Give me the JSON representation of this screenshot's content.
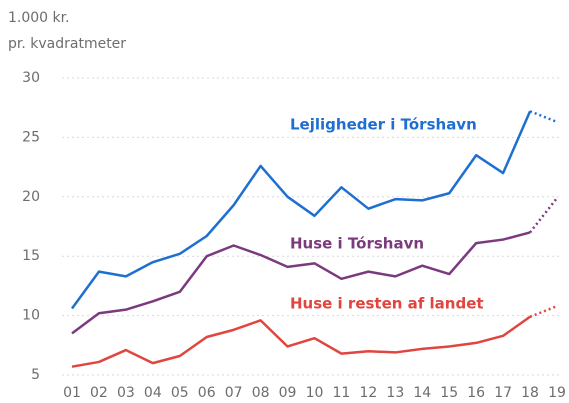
{
  "chart_data": {
    "type": "line",
    "ylabel": [
      "1.000 kr.",
      "pr. kvadratmeter"
    ],
    "categories": [
      "01",
      "02",
      "03",
      "04",
      "05",
      "06",
      "07",
      "08",
      "09",
      "10",
      "11",
      "12",
      "13",
      "14",
      "15",
      "16",
      "17",
      "18",
      "19"
    ],
    "series": [
      {
        "name": "Lejligheder i Tórshavn",
        "color": "#1f6fd1",
        "values": [
          10.6,
          13.7,
          13.3,
          14.5,
          15.2,
          16.7,
          19.3,
          22.6,
          20.0,
          18.4,
          20.8,
          19.0,
          19.8,
          19.7,
          20.3,
          23.5,
          22.0,
          27.2,
          26.3
        ]
      },
      {
        "name": "Huse i Tórshavn",
        "color": "#7b3a7e",
        "values": [
          8.5,
          10.2,
          10.5,
          11.2,
          12.0,
          15.0,
          15.9,
          15.1,
          14.1,
          14.4,
          13.1,
          13.7,
          13.3,
          14.2,
          13.5,
          16.1,
          16.4,
          17.0,
          19.9
        ]
      },
      {
        "name": "Huse i resten af landet",
        "color": "#e0463f",
        "values": [
          5.7,
          6.1,
          7.1,
          6.0,
          6.6,
          8.2,
          8.8,
          9.6,
          7.4,
          8.1,
          6.8,
          7.0,
          6.9,
          7.2,
          7.4,
          7.7,
          8.3,
          9.9,
          10.8
        ]
      }
    ],
    "ylim": [
      5,
      30
    ],
    "yticks": [
      5,
      10,
      15,
      20,
      25,
      30
    ],
    "grid": true,
    "projected_last": true
  }
}
